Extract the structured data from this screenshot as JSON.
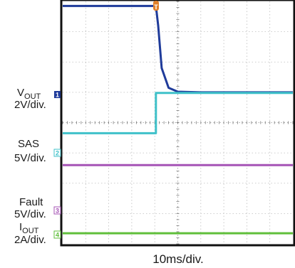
{
  "chart_data": {
    "type": "line",
    "title": "",
    "xlabel": "10ms/div.",
    "x_divisions": 10,
    "y_divisions": 8,
    "trigger_marker": "T",
    "grid": true,
    "series": [
      {
        "name": "VOUT",
        "label_main": "V",
        "label_sub": "OUT",
        "scale": "2V/div.",
        "marker": "1",
        "color": "#1f3b9a",
        "x": [
          0,
          4.05,
          4.15,
          4.3,
          4.6,
          5.0,
          6.0,
          10
        ],
        "y": [
          7.85,
          7.85,
          7.2,
          5.8,
          5.15,
          5.02,
          5.0,
          5.0
        ]
      },
      {
        "name": "SAS",
        "scale": "5V/div.",
        "marker": "2",
        "color": "#3fc1c9",
        "x": [
          0,
          4.05,
          4.05,
          10
        ],
        "y": [
          3.65,
          3.65,
          4.98,
          4.98
        ]
      },
      {
        "name": "Fault",
        "scale": "5V/div.",
        "marker": "3",
        "color": "#a553b5",
        "x": [
          0,
          10
        ],
        "y": [
          2.6,
          2.6
        ]
      },
      {
        "name": "IOUT",
        "label_main": "I",
        "label_sub": "OUT",
        "scale": "2A/div.",
        "marker": "4",
        "color": "#5fbf3a",
        "x": [
          0,
          10
        ],
        "y": [
          0.35,
          0.35
        ]
      }
    ]
  }
}
